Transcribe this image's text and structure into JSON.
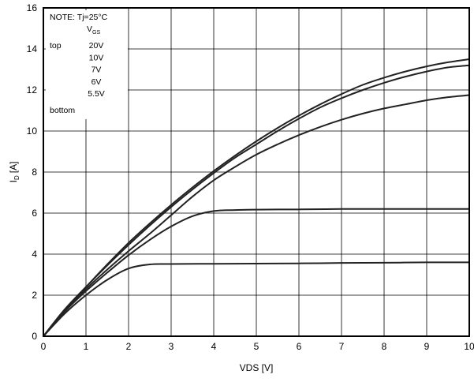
{
  "chart_data": {
    "type": "line",
    "title": "",
    "xlabel": "VDS [V]",
    "ylabel_main": "I",
    "ylabel_sub": "D",
    "ylabel_unit": "[A]",
    "xlim": [
      0,
      10
    ],
    "ylim": [
      0,
      16
    ],
    "x_ticks": [
      "0",
      "1",
      "2",
      "3",
      "4",
      "5",
      "6",
      "7",
      "8",
      "9",
      "10"
    ],
    "y_ticks": [
      "0",
      "2",
      "4",
      "6",
      "8",
      "10",
      "12",
      "14",
      "16"
    ],
    "grid": true,
    "legend": {
      "note": "NOTE: Tj=25°C",
      "header_main": "V",
      "header_sub": "GS",
      "top_label": "top",
      "bottom_label": "bottom",
      "entries": [
        "20V",
        "10V",
        "7V",
        "6V",
        "5.5V"
      ]
    },
    "series": [
      {
        "x": [
          0,
          0.5,
          1,
          1.5,
          2,
          2.5,
          3,
          3.5,
          4,
          4.5,
          5,
          5.5,
          6,
          6.5,
          7,
          7.5,
          8,
          8.5,
          9,
          9.5,
          10
        ],
        "y": [
          0,
          1.3,
          2.4,
          3.5,
          4.55,
          5.5,
          6.4,
          7.25,
          8.05,
          8.8,
          9.5,
          10.15,
          10.75,
          11.3,
          11.8,
          12.25,
          12.6,
          12.9,
          13.15,
          13.35,
          13.5
        ]
      },
      {
        "x": [
          0,
          0.5,
          1,
          1.5,
          2,
          2.5,
          3,
          3.5,
          4,
          4.5,
          5,
          5.5,
          6,
          6.5,
          7,
          7.5,
          8,
          8.5,
          9,
          9.5,
          10
        ],
        "y": [
          0,
          1.3,
          2.4,
          3.45,
          4.45,
          5.4,
          6.3,
          7.15,
          7.95,
          8.7,
          9.35,
          10.0,
          10.6,
          11.15,
          11.6,
          12.0,
          12.35,
          12.65,
          12.9,
          13.1,
          13.2
        ]
      },
      {
        "x": [
          0,
          0.5,
          1,
          1.5,
          2,
          2.5,
          3,
          3.5,
          4,
          4.5,
          5,
          5.5,
          6,
          6.5,
          7,
          7.5,
          8,
          8.5,
          9,
          9.5,
          10
        ],
        "y": [
          0,
          1.25,
          2.3,
          3.25,
          4.15,
          5.0,
          5.9,
          6.8,
          7.6,
          8.25,
          8.85,
          9.35,
          9.8,
          10.2,
          10.55,
          10.85,
          11.1,
          11.3,
          11.5,
          11.65,
          11.75
        ]
      },
      {
        "x": [
          0,
          0.5,
          1,
          1.5,
          2,
          2.5,
          3,
          3.5,
          4,
          4.5,
          5,
          5.5,
          6,
          7,
          8,
          9,
          10
        ],
        "y": [
          0,
          1.2,
          2.2,
          3.1,
          3.95,
          4.7,
          5.35,
          5.85,
          6.1,
          6.15,
          6.17,
          6.18,
          6.18,
          6.2,
          6.2,
          6.2,
          6.2
        ]
      },
      {
        "x": [
          0,
          0.5,
          1,
          1.5,
          2,
          2.5,
          3,
          4,
          5,
          6,
          7,
          8,
          9,
          10
        ],
        "y": [
          0,
          1.1,
          2.0,
          2.75,
          3.3,
          3.5,
          3.52,
          3.53,
          3.54,
          3.55,
          3.57,
          3.58,
          3.6,
          3.6
        ]
      }
    ]
  }
}
